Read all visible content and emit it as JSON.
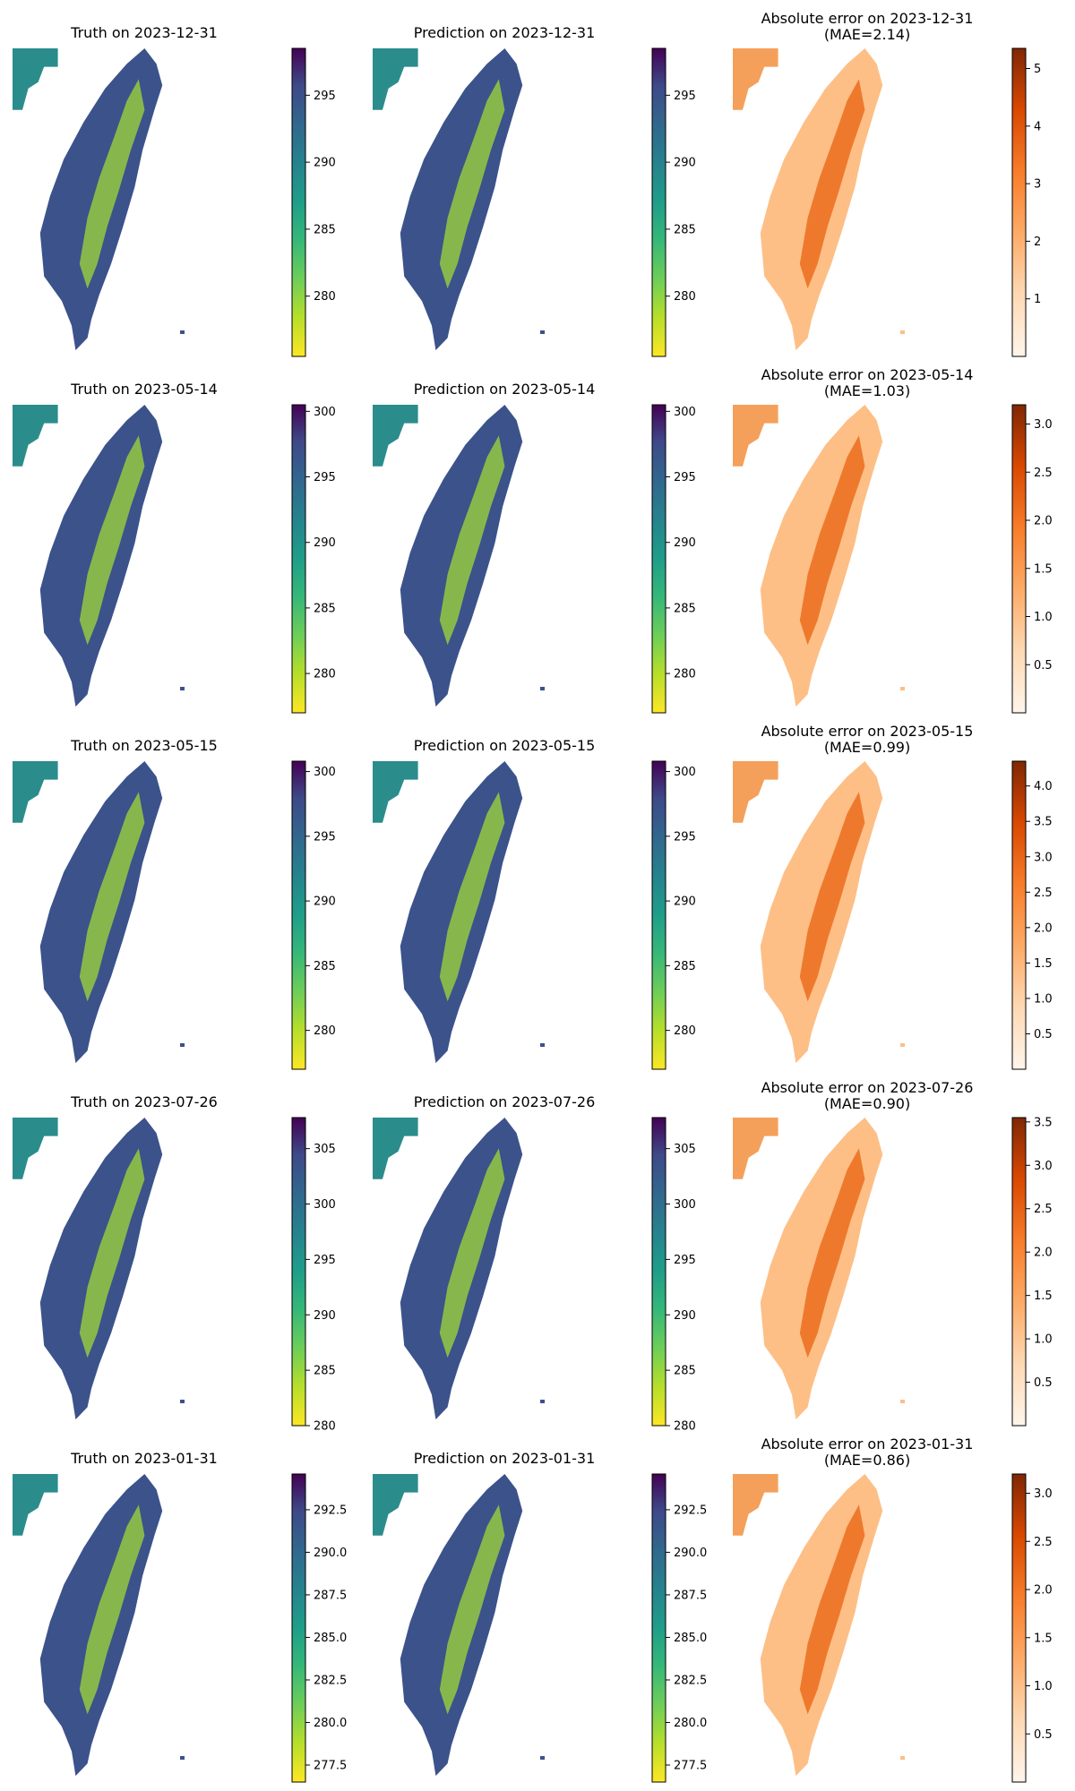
{
  "chart_data": [
    {
      "type": "heatmap",
      "panels": [
        {
          "kind": "truth",
          "title": "Truth on 2023-12-31",
          "colormap": "viridis_r",
          "colorbar_range": [
            275.5,
            298.5
          ],
          "colorbar_ticks": [
            "280",
            "285",
            "290",
            "295"
          ]
        },
        {
          "kind": "prediction",
          "title": "Prediction on 2023-12-31",
          "colormap": "viridis_r",
          "colorbar_range": [
            275.5,
            298.5
          ],
          "colorbar_ticks": [
            "280",
            "285",
            "290",
            "295"
          ]
        },
        {
          "kind": "abs_error",
          "title": "Absolute error on 2023-12-31",
          "subtitle": "(MAE=2.14)",
          "colormap": "Oranges",
          "colorbar_range": [
            0,
            5.35
          ],
          "colorbar_ticks": [
            "1",
            "2",
            "3",
            "4",
            "5"
          ]
        }
      ]
    },
    {
      "type": "heatmap",
      "panels": [
        {
          "kind": "truth",
          "title": "Truth on 2023-05-14",
          "colormap": "viridis_r",
          "colorbar_range": [
            277,
            300.5
          ],
          "colorbar_ticks": [
            "280",
            "285",
            "290",
            "295",
            "300"
          ]
        },
        {
          "kind": "prediction",
          "title": "Prediction on 2023-05-14",
          "colormap": "viridis_r",
          "colorbar_range": [
            277,
            300.5
          ],
          "colorbar_ticks": [
            "280",
            "285",
            "290",
            "295",
            "300"
          ]
        },
        {
          "kind": "abs_error",
          "title": "Absolute error on 2023-05-14",
          "subtitle": "(MAE=1.03)",
          "colormap": "Oranges",
          "colorbar_range": [
            0,
            3.2
          ],
          "colorbar_ticks": [
            "0.5",
            "1.0",
            "1.5",
            "2.0",
            "2.5",
            "3.0"
          ]
        }
      ]
    },
    {
      "type": "heatmap",
      "panels": [
        {
          "kind": "truth",
          "title": "Truth on 2023-05-15",
          "colormap": "viridis_r",
          "colorbar_range": [
            277,
            300.8
          ],
          "colorbar_ticks": [
            "280",
            "285",
            "290",
            "295",
            "300"
          ]
        },
        {
          "kind": "prediction",
          "title": "Prediction on 2023-05-15",
          "colormap": "viridis_r",
          "colorbar_range": [
            277,
            300.8
          ],
          "colorbar_ticks": [
            "280",
            "285",
            "290",
            "295",
            "300"
          ]
        },
        {
          "kind": "abs_error",
          "title": "Absolute error on 2023-05-15",
          "subtitle": "(MAE=0.99)",
          "colormap": "Oranges",
          "colorbar_range": [
            0,
            4.35
          ],
          "colorbar_ticks": [
            "0.5",
            "1.0",
            "1.5",
            "2.0",
            "2.5",
            "3.0",
            "3.5",
            "4.0"
          ]
        }
      ]
    },
    {
      "type": "heatmap",
      "panels": [
        {
          "kind": "truth",
          "title": "Truth on 2023-07-26",
          "colormap": "viridis_r",
          "colorbar_range": [
            280,
            307.8
          ],
          "colorbar_ticks": [
            "280",
            "285",
            "290",
            "295",
            "300",
            "305"
          ]
        },
        {
          "kind": "prediction",
          "title": "Prediction on 2023-07-26",
          "colormap": "viridis_r",
          "colorbar_range": [
            280,
            307.8
          ],
          "colorbar_ticks": [
            "280",
            "285",
            "290",
            "295",
            "300",
            "305"
          ]
        },
        {
          "kind": "abs_error",
          "title": "Absolute error on 2023-07-26",
          "subtitle": "(MAE=0.90)",
          "colormap": "Oranges",
          "colorbar_range": [
            0,
            3.55
          ],
          "colorbar_ticks": [
            "0.5",
            "1.0",
            "1.5",
            "2.0",
            "2.5",
            "3.0",
            "3.5"
          ]
        }
      ]
    },
    {
      "type": "heatmap",
      "panels": [
        {
          "kind": "truth",
          "title": "Truth on 2023-01-31",
          "colormap": "viridis_r",
          "colorbar_range": [
            276.5,
            294.6
          ],
          "colorbar_ticks": [
            "277.5",
            "280.0",
            "282.5",
            "285.0",
            "287.5",
            "290.0",
            "292.5"
          ]
        },
        {
          "kind": "prediction",
          "title": "Prediction on 2023-01-31",
          "colormap": "viridis_r",
          "colorbar_range": [
            276.5,
            294.6
          ],
          "colorbar_ticks": [
            "277.5",
            "280.0",
            "282.5",
            "285.0",
            "287.5",
            "290.0",
            "292.5"
          ]
        },
        {
          "kind": "abs_error",
          "title": "Absolute error on 2023-01-31",
          "subtitle": "(MAE=0.86)",
          "colormap": "Oranges",
          "colorbar_range": [
            0,
            3.2
          ],
          "colorbar_ticks": [
            "0.5",
            "1.0",
            "1.5",
            "2.0",
            "2.5",
            "3.0"
          ]
        }
      ]
    }
  ]
}
